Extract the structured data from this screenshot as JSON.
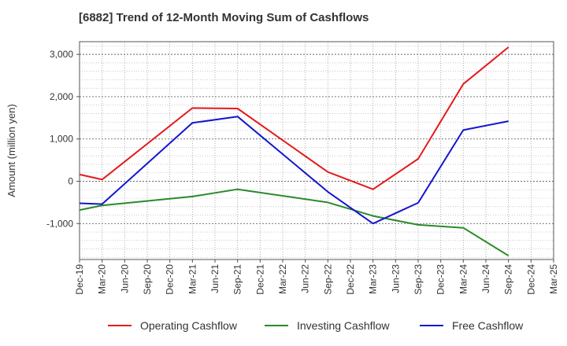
{
  "chart_data": {
    "type": "line",
    "title": "[6882]  Trend of 12-Month Moving Sum of Cashflows",
    "xlabel": "",
    "ylabel": "Amount (million yen)",
    "categories": [
      "Dec-19",
      "Mar-20",
      "Jun-20",
      "Sep-20",
      "Dec-20",
      "Mar-21",
      "Jun-21",
      "Sep-21",
      "Dec-21",
      "Mar-22",
      "Jun-22",
      "Sep-22",
      "Dec-22",
      "Mar-23",
      "Jun-23",
      "Sep-23",
      "Dec-23",
      "Mar-24",
      "Jun-24",
      "Sep-24",
      "Dec-24",
      "Mar-25"
    ],
    "ylim": [
      -1850,
      3300
    ],
    "yticks": [
      -1000,
      0,
      1000,
      2000,
      3000
    ],
    "ytick_labels": [
      "-1,000",
      "0",
      "1,000",
      "2,000",
      "3,000"
    ],
    "grid": true,
    "legend_position": "bottom",
    "series": [
      {
        "name": "Operating Cashflow",
        "color": "#e31a1c",
        "values": [
          160,
          40,
          null,
          null,
          null,
          1730,
          null,
          1720,
          null,
          null,
          null,
          220,
          null,
          -190,
          null,
          530,
          null,
          2300,
          null,
          3170,
          null,
          null
        ]
      },
      {
        "name": "Investing Cashflow",
        "color": "#2a8a2a",
        "values": [
          -680,
          -570,
          null,
          null,
          null,
          -360,
          null,
          -190,
          null,
          null,
          null,
          -500,
          null,
          -820,
          null,
          -1030,
          null,
          -1100,
          null,
          -1760,
          null,
          null
        ]
      },
      {
        "name": "Free Cashflow",
        "color": "#1515d0",
        "values": [
          -520,
          -540,
          null,
          null,
          null,
          1380,
          null,
          1530,
          null,
          null,
          null,
          -250,
          null,
          -1000,
          null,
          -510,
          null,
          1210,
          null,
          1420,
          null,
          null
        ]
      }
    ]
  }
}
